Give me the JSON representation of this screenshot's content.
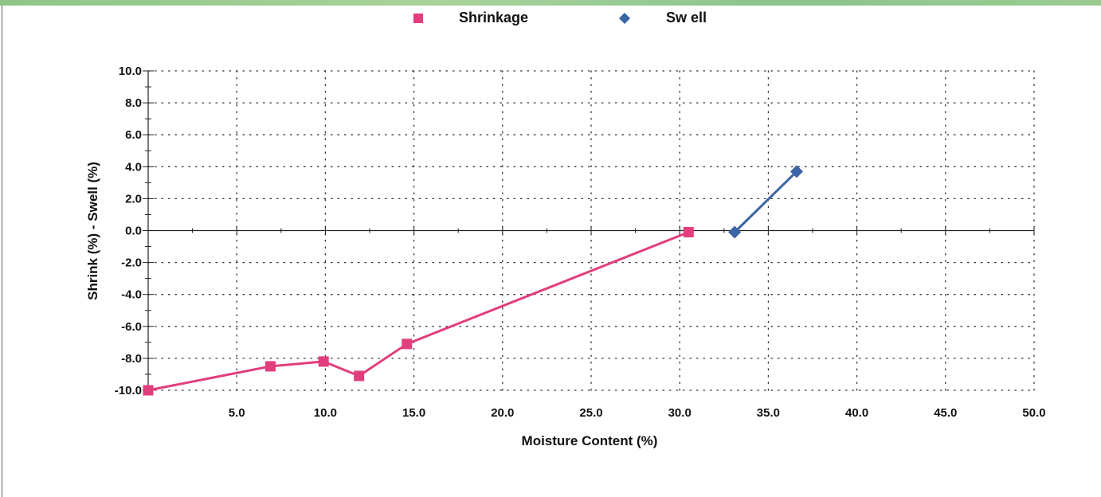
{
  "chart_data": {
    "type": "line",
    "xlabel": "Moisture Content (%)",
    "ylabel": "Shrink (%) - Swell (%)",
    "xlim": [
      0,
      50
    ],
    "ylim": [
      -10,
      10
    ],
    "grid": true,
    "legend_position": "top",
    "x_ticks": [
      "5.0",
      "10.0",
      "15.0",
      "20.0",
      "25.0",
      "30.0",
      "35.0",
      "40.0",
      "45.0",
      "50.0"
    ],
    "y_ticks": [
      "10.0",
      "8.0",
      "6.0",
      "4.0",
      "2.0",
      "0.0",
      "-2.0",
      "-4.0",
      "-6.0",
      "-8.0",
      "-10.0"
    ],
    "series": [
      {
        "name": "Shrinkage",
        "color": "#e23d7c",
        "marker": "square",
        "x": [
          0.0,
          6.9,
          9.9,
          11.9,
          14.6,
          30.5
        ],
        "y": [
          -10.0,
          -8.5,
          -8.2,
          -9.1,
          -7.1,
          -0.1
        ]
      },
      {
        "name": "Sw ell",
        "color": "#3a64a4",
        "marker": "diamond",
        "x": [
          33.1,
          36.6
        ],
        "y": [
          -0.1,
          3.7
        ]
      }
    ]
  }
}
